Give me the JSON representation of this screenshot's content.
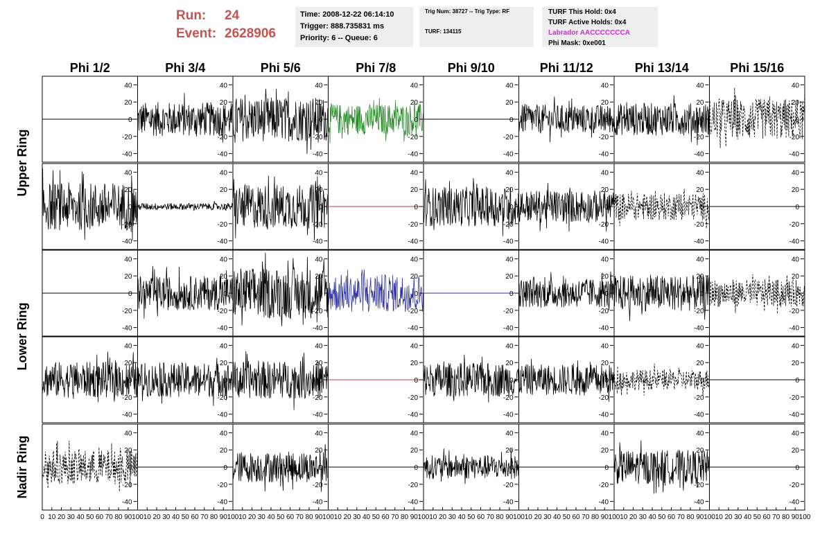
{
  "header": {
    "run_label": "Run:",
    "run_value": "24",
    "event_label": "Event:",
    "event_value": "2628906",
    "time": "Time: 2008-12-22 06:14:10",
    "trigger": "Trigger: 888.735831 ms",
    "priority": "Priority: 6 -- Queue: 6",
    "trig_num": "Trig Num: 38727 -- Trig Type: RF",
    "turf": "TURF: 134115",
    "turf_this_hold": "TURF This Hold: 0x4",
    "turf_active_holds": "TURF Active Holds: 0x4",
    "labrador": "Labrador AACCCCCCCA",
    "phi_mask": "Phi Mask: 0xe001"
  },
  "colors": {
    "run_text": "#c8524e",
    "labrador_text": "#e21ee0",
    "green_trace": "#2a8a2a",
    "blue_trace": "#2b2fa0",
    "red_trace": "#cc3333"
  },
  "chart_data": {
    "type": "line",
    "columns": [
      "Phi 1/2",
      "Phi 3/4",
      "Phi 5/6",
      "Phi 7/8",
      "Phi 9/10",
      "Phi 11/12",
      "Phi 13/14",
      "Phi 15/16"
    ],
    "ring_labels": [
      {
        "text": "Upper Ring",
        "rows": [
          0,
          1
        ]
      },
      {
        "text": "Lower Ring",
        "rows": [
          2,
          3
        ]
      },
      {
        "text": "Nadir Ring",
        "rows": [
          4
        ]
      }
    ],
    "ylim": [
      -50,
      50
    ],
    "yticks": [
      -40,
      -20,
      0,
      20,
      40
    ],
    "xlim": [
      0,
      100
    ],
    "xticks": [
      0,
      10,
      20,
      30,
      40,
      50,
      60,
      70,
      80,
      90,
      100
    ],
    "panels": [
      [
        {
          "style": "flat",
          "color": "#000000"
        },
        {
          "style": "noisy",
          "amp": 20,
          "color": "#000000"
        },
        {
          "style": "noisy",
          "amp": 26,
          "color": "#000000"
        },
        {
          "style": "noisy",
          "amp": 18,
          "color": "#2a8a2a"
        },
        {
          "style": "flat",
          "color": "#000000"
        },
        {
          "style": "noisy",
          "amp": 17,
          "color": "#000000"
        },
        {
          "style": "noisy",
          "amp": 19,
          "color": "#000000"
        },
        {
          "style": "dashed",
          "amp": 24,
          "color": "#000000"
        }
      ],
      [
        {
          "style": "noisy",
          "amp": 28,
          "color": "#000000"
        },
        {
          "style": "noisy",
          "amp": 4,
          "color": "#000000"
        },
        {
          "style": "noisy",
          "amp": 26,
          "color": "#000000"
        },
        {
          "style": "flat",
          "color": "#cc3333"
        },
        {
          "style": "noisy",
          "amp": 23,
          "color": "#000000"
        },
        {
          "style": "noisy",
          "amp": 19,
          "color": "#000000"
        },
        {
          "style": "dashed",
          "amp": 16,
          "color": "#000000"
        },
        {
          "style": "flat",
          "color": "#000000"
        }
      ],
      [
        {
          "style": "flat",
          "color": "#000000"
        },
        {
          "style": "noisy",
          "amp": 20,
          "color": "#000000"
        },
        {
          "style": "noisy",
          "amp": 30,
          "color": "#000000"
        },
        {
          "style": "noisy",
          "amp": 22,
          "color": "#2b2fa0"
        },
        {
          "style": "flat",
          "color": "#2b2fa0"
        },
        {
          "style": "noisy",
          "amp": 17,
          "color": "#000000"
        },
        {
          "style": "noisy",
          "amp": 21,
          "color": "#000000"
        },
        {
          "style": "dashed",
          "amp": 16,
          "color": "#000000"
        }
      ],
      [
        {
          "style": "noisy",
          "amp": 21,
          "color": "#000000"
        },
        {
          "style": "noisy",
          "amp": 20,
          "color": "#000000"
        },
        {
          "style": "noisy",
          "amp": 22,
          "color": "#000000"
        },
        {
          "style": "flat",
          "color": "#cc3333"
        },
        {
          "style": "noisy",
          "amp": 20,
          "color": "#000000"
        },
        {
          "style": "noisy",
          "amp": 18,
          "color": "#000000"
        },
        {
          "style": "dashed",
          "amp": 12,
          "color": "#000000"
        },
        {
          "style": "flat",
          "color": "#000000"
        }
      ],
      [
        {
          "style": "dashed",
          "amp": 20,
          "color": "#000000"
        },
        {
          "style": "flat",
          "color": "#000000"
        },
        {
          "style": "noisy",
          "amp": 18,
          "color": "#000000"
        },
        {
          "style": "flat",
          "color": "#000000"
        },
        {
          "style": "noisy",
          "amp": 14,
          "color": "#000000"
        },
        {
          "style": "flat",
          "color": "#000000"
        },
        {
          "style": "noisy",
          "amp": 20,
          "color": "#000000"
        },
        {
          "style": "flat",
          "color": "#000000"
        }
      ]
    ]
  }
}
